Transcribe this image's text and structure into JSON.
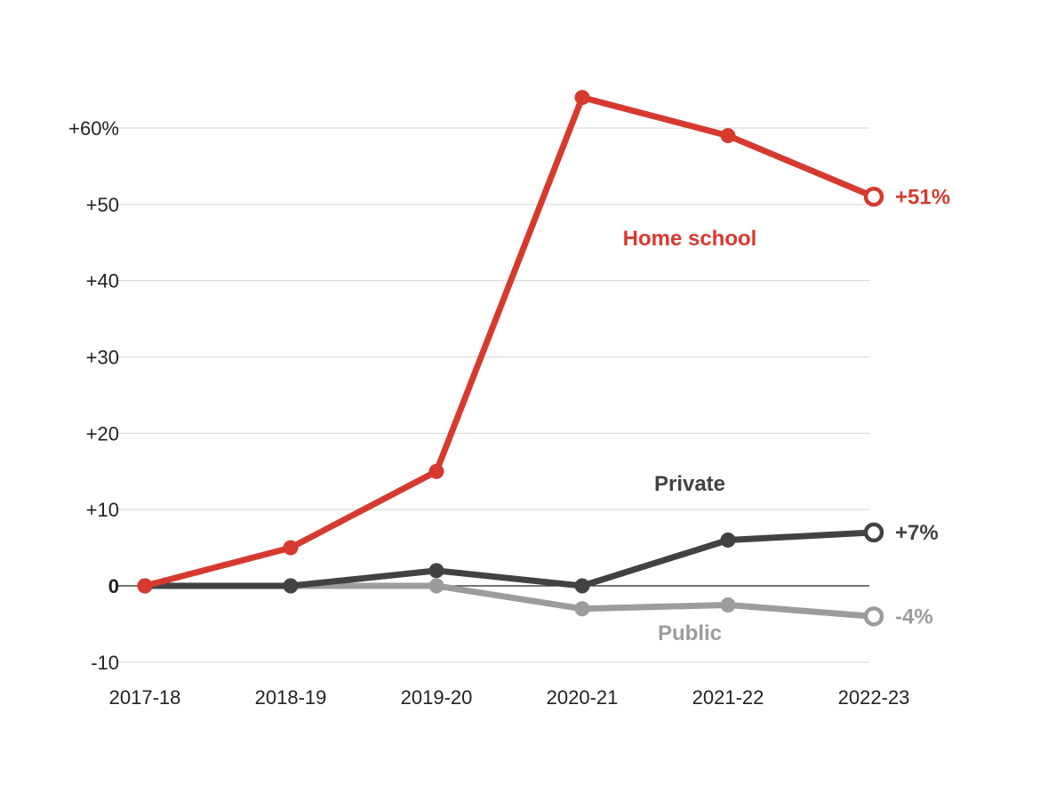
{
  "chart_data": {
    "type": "line",
    "x": [
      "2017-18",
      "2018-19",
      "2019-20",
      "2020-21",
      "2021-22",
      "2022-23"
    ],
    "series": [
      {
        "name": "Home school",
        "values": [
          0,
          5,
          15,
          64,
          59,
          51
        ],
        "end_label": "+51%",
        "color": "#d63a2f"
      },
      {
        "name": "Private",
        "values": [
          0,
          0,
          2,
          0,
          6,
          7
        ],
        "end_label": "+7%",
        "color": "#424242"
      },
      {
        "name": "Public",
        "values": [
          0,
          0,
          0,
          -3,
          -2.5,
          -4
        ],
        "end_label": "-4%",
        "color": "#9c9c9c"
      }
    ],
    "y_ticks": [
      {
        "value": -10,
        "label": "-10"
      },
      {
        "value": 0,
        "label": "0"
      },
      {
        "value": 10,
        "label": "+10"
      },
      {
        "value": 20,
        "label": "+20"
      },
      {
        "value": 30,
        "label": "+30"
      },
      {
        "value": 40,
        "label": "+40"
      },
      {
        "value": 50,
        "label": "+50"
      },
      {
        "value": 60,
        "label": "+60%"
      }
    ],
    "ylim": [
      -10,
      60
    ],
    "grid": true,
    "legend": "direct labels"
  }
}
